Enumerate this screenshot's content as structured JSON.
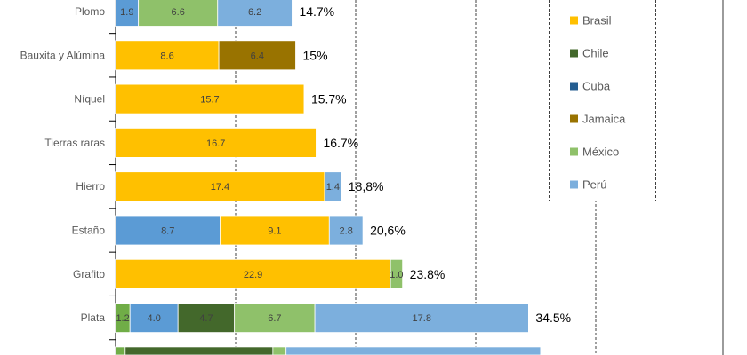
{
  "chart_data": {
    "type": "bar",
    "orientation": "horizontal",
    "stacked": true,
    "grid": true,
    "xlim": [
      0,
      50
    ],
    "legend_placement": "right",
    "categories": [
      "Plomo",
      "Bauxita y Alúmina",
      "Níquel",
      "Tierras raras",
      "Hierro",
      "Estaño",
      "Grafito",
      "Plata",
      ""
    ],
    "totals": [
      "14.7%",
      "15%",
      "15.7%",
      "16.7%",
      "18,8%",
      "20,6%",
      "23.8%",
      "34.5%",
      ""
    ],
    "series": [
      {
        "color": "#70ad47",
        "values": [
          0,
          0,
          0,
          0,
          0,
          0,
          0,
          1.2,
          0.8
        ]
      },
      {
        "color": "#5b9bd5",
        "values": [
          1.9,
          0,
          0,
          0,
          0,
          8.7,
          0,
          4.0,
          0
        ]
      },
      {
        "name": "Brasil",
        "color": "#ffc000",
        "values": [
          0,
          8.6,
          15.7,
          16.7,
          17.4,
          9.1,
          22.9,
          0,
          0
        ]
      },
      {
        "name": "Chile",
        "color": "#43682b",
        "values": [
          0,
          0,
          0,
          0,
          0,
          0,
          0,
          4.7,
          12.3
        ]
      },
      {
        "name": "Cuba",
        "color": "#255e91",
        "values": [
          0,
          0,
          0,
          0,
          0,
          0,
          0,
          0,
          0
        ]
      },
      {
        "name": "Jamaica",
        "color": "#997300",
        "values": [
          0,
          6.4,
          0,
          0,
          0,
          0,
          0,
          0,
          0
        ]
      },
      {
        "name": "México",
        "color": "#8fc16a",
        "values": [
          6.6,
          0,
          0,
          0,
          0,
          0,
          1.0,
          6.7,
          1.1
        ]
      },
      {
        "name": "Perú",
        "color": "#7cafdd",
        "values": [
          6.2,
          0,
          0,
          0,
          1.4,
          2.8,
          0,
          17.8,
          21.2
        ]
      }
    ],
    "labeled_rows": [
      0,
      1,
      2,
      3,
      4,
      5,
      6,
      7
    ]
  }
}
